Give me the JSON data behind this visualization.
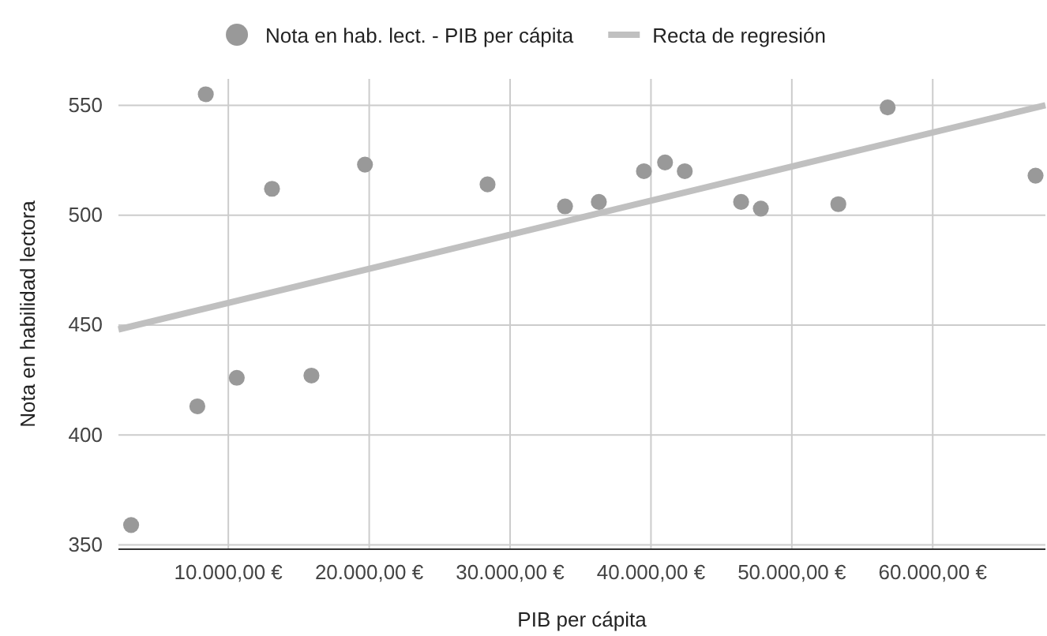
{
  "chart_data": {
    "type": "scatter",
    "xlabel": "PIB per cápita",
    "ylabel": "Nota en habilidad lectora",
    "xlim": [
      2200,
      68000
    ],
    "ylim": [
      348,
      562
    ],
    "xticks": [
      {
        "value": 10000,
        "label": "10.000,00 €"
      },
      {
        "value": 20000,
        "label": "20.000,00 €"
      },
      {
        "value": 30000,
        "label": "30.000,00 €"
      },
      {
        "value": 40000,
        "label": "40.000,00 €"
      },
      {
        "value": 50000,
        "label": "50.000,00 €"
      },
      {
        "value": 60000,
        "label": "60.000,00 €"
      }
    ],
    "yticks": [
      350,
      400,
      450,
      500,
      550
    ],
    "grid": true,
    "legend": "top",
    "series": [
      {
        "name": "Nota en hab. lect. - PIB per cápita",
        "marker": "circle",
        "color": "#999999",
        "x": [
          3100,
          7800,
          8400,
          10600,
          13100,
          15900,
          19700,
          28400,
          33900,
          36300,
          39500,
          41000,
          42400,
          46400,
          47800,
          53300,
          56800,
          67300
        ],
        "values": [
          359,
          413,
          555,
          426,
          512,
          427,
          523,
          514,
          504,
          506,
          520,
          524,
          520,
          506,
          503,
          505,
          549,
          518
        ]
      },
      {
        "name": "Recta de regresión",
        "type": "line",
        "color": "#c0c0c0",
        "x": [
          2200,
          68000
        ],
        "values": [
          448,
          550
        ]
      }
    ]
  }
}
